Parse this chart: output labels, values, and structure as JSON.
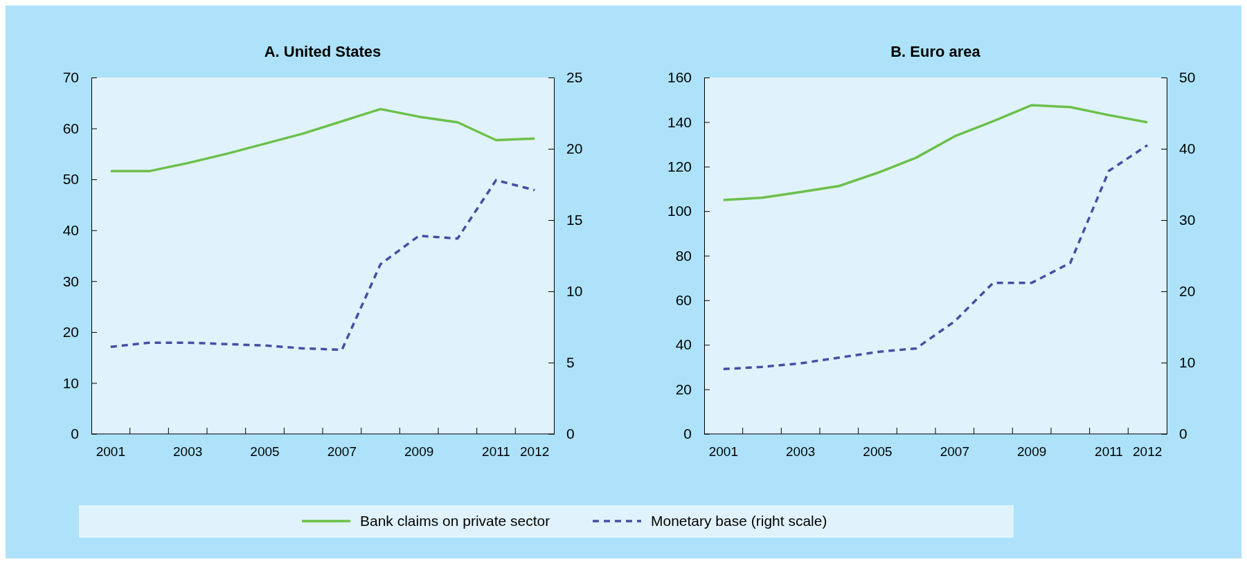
{
  "chart_data": [
    {
      "type": "line",
      "title": "A. United States",
      "categories": [
        "2001",
        null,
        "2003",
        null,
        "2005",
        null,
        "2007",
        null,
        "2009",
        null,
        "2011",
        "2012"
      ],
      "ylim": [
        0,
        70
      ],
      "yticks": [
        0,
        10,
        20,
        30,
        40,
        50,
        60,
        70
      ],
      "y2lim": [
        0,
        25
      ],
      "y2ticks": [
        0,
        5,
        10,
        15,
        20,
        25
      ],
      "legend": "bottom",
      "grid": false,
      "series": [
        {
          "name": "Bank claims on private sector",
          "color": "#6cc04a",
          "line_style": "solid",
          "values": [
            51.6,
            51.6,
            53.2,
            55.0,
            57.0,
            59.0,
            61.4,
            63.8,
            62.3,
            61.2,
            57.7,
            58.0
          ]
        },
        {
          "name": "Monetary base (right scale)",
          "color": "#4a4ba6",
          "line_style": "dashed",
          "axis": "y2",
          "values": [
            6.1,
            6.4,
            6.4,
            6.3,
            6.2,
            6.0,
            5.9,
            11.9,
            13.9,
            13.7,
            17.8,
            17.1
          ]
        }
      ]
    },
    {
      "type": "line",
      "title": "B. Euro area",
      "categories": [
        "2001",
        null,
        "2003",
        null,
        "2005",
        null,
        "2007",
        null,
        "2009",
        null,
        "2011",
        "2012"
      ],
      "ylim": [
        0,
        160
      ],
      "yticks": [
        0,
        20,
        40,
        60,
        80,
        100,
        120,
        140,
        160
      ],
      "y2lim": [
        0,
        50
      ],
      "y2ticks": [
        0,
        10,
        20,
        30,
        40,
        50
      ],
      "grid": false,
      "series": [
        {
          "color": "#6cc04a",
          "line_style": "solid",
          "values": [
            105,
            106,
            108.6,
            111.3,
            117.2,
            124,
            133.6,
            140.4,
            147.6,
            146.7,
            143.1,
            139.9
          ]
        },
        {
          "color": "#4a4ba6",
          "line_style": "dashed",
          "axis": "y2",
          "values": [
            9.1,
            9.4,
            9.9,
            10.7,
            11.5,
            12.0,
            15.8,
            21.2,
            21.2,
            24.0,
            36.9,
            40.5
          ]
        }
      ]
    }
  ]
}
